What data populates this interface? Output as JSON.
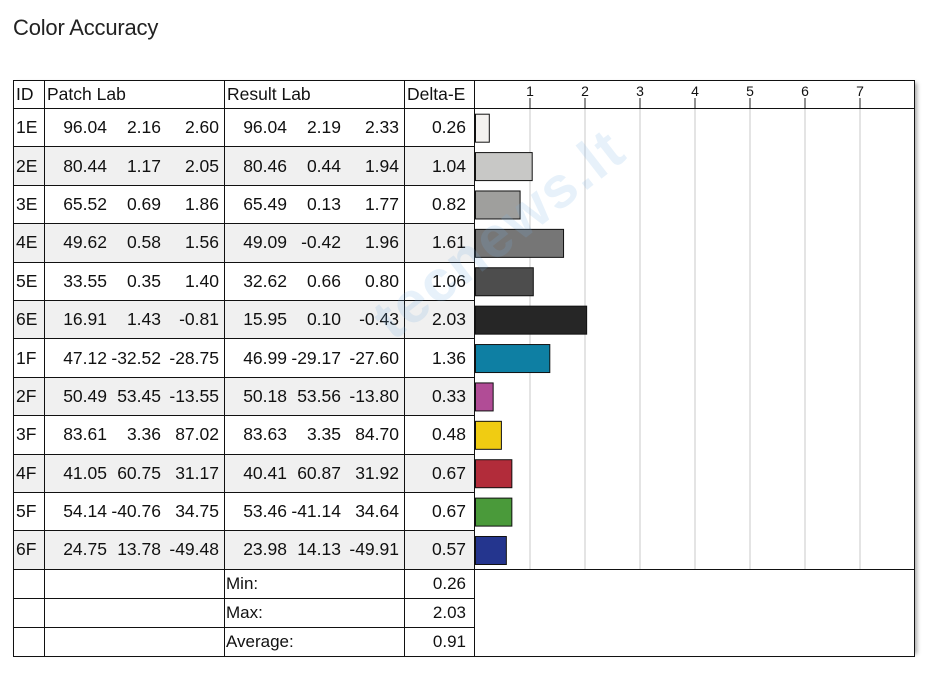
{
  "title": "Color Accuracy",
  "headers": {
    "id": "ID",
    "patch": "Patch Lab",
    "result": "Result Lab",
    "delta": "Delta-E"
  },
  "rows": [
    {
      "id": "1E",
      "patch": [
        "96.04",
        "2.16",
        "2.60"
      ],
      "result": [
        "96.04",
        "2.19",
        "2.33"
      ],
      "delta": "0.26",
      "color": "#f4f2f0"
    },
    {
      "id": "2E",
      "patch": [
        "80.44",
        "1.17",
        "2.05"
      ],
      "result": [
        "80.46",
        "0.44",
        "1.94"
      ],
      "delta": "1.04",
      "color": "#c8c8c6"
    },
    {
      "id": "3E",
      "patch": [
        "65.52",
        "0.69",
        "1.86"
      ],
      "result": [
        "65.49",
        "0.13",
        "1.77"
      ],
      "delta": "0.82",
      "color": "#9f9f9d"
    },
    {
      "id": "4E",
      "patch": [
        "49.62",
        "0.58",
        "1.56"
      ],
      "result": [
        "49.09",
        "-0.42",
        "1.96"
      ],
      "delta": "1.61",
      "color": "#767676"
    },
    {
      "id": "5E",
      "patch": [
        "33.55",
        "0.35",
        "1.40"
      ],
      "result": [
        "32.62",
        "0.66",
        "0.80"
      ],
      "delta": "1.06",
      "color": "#4d4d4d"
    },
    {
      "id": "6E",
      "patch": [
        "16.91",
        "1.43",
        "-0.81"
      ],
      "result": [
        "15.95",
        "0.10",
        "-0.43"
      ],
      "delta": "2.03",
      "color": "#262626"
    },
    {
      "id": "1F",
      "patch": [
        "47.12",
        "-32.52",
        "-28.75"
      ],
      "result": [
        "46.99",
        "-29.17",
        "-27.60"
      ],
      "delta": "1.36",
      "color": "#0e7fa3"
    },
    {
      "id": "2F",
      "patch": [
        "50.49",
        "53.45",
        "-13.55"
      ],
      "result": [
        "50.18",
        "53.56",
        "-13.80"
      ],
      "delta": "0.33",
      "color": "#b14c96"
    },
    {
      "id": "3F",
      "patch": [
        "83.61",
        "3.36",
        "87.02"
      ],
      "result": [
        "83.63",
        "3.35",
        "84.70"
      ],
      "delta": "0.48",
      "color": "#f0cc12"
    },
    {
      "id": "4F",
      "patch": [
        "41.05",
        "60.75",
        "31.17"
      ],
      "result": [
        "40.41",
        "60.87",
        "31.92"
      ],
      "delta": "0.67",
      "color": "#b22c3a"
    },
    {
      "id": "5F",
      "patch": [
        "54.14",
        "-40.76",
        "34.75"
      ],
      "result": [
        "53.46",
        "-41.14",
        "34.64"
      ],
      "delta": "0.67",
      "color": "#4a9a3a"
    },
    {
      "id": "6F",
      "patch": [
        "24.75",
        "13.78",
        "-49.48"
      ],
      "result": [
        "23.98",
        "14.13",
        "-49.91"
      ],
      "delta": "0.57",
      "color": "#24358e"
    }
  ],
  "summary": [
    {
      "label": "Min:",
      "value": "0.26"
    },
    {
      "label": "Max:",
      "value": "2.03"
    },
    {
      "label": "Average:",
      "value": "0.91"
    }
  ],
  "watermark": "tecnews.lt",
  "chart_data": {
    "type": "bar",
    "orientation": "horizontal",
    "title": "Color Accuracy",
    "categories": [
      "1E",
      "2E",
      "3E",
      "4E",
      "5E",
      "6E",
      "1F",
      "2F",
      "3F",
      "4F",
      "5F",
      "6F"
    ],
    "values": [
      0.26,
      1.04,
      0.82,
      1.61,
      1.06,
      2.03,
      1.36,
      0.33,
      0.48,
      0.67,
      0.67,
      0.57
    ],
    "bar_colors": [
      "#f4f2f0",
      "#c8c8c6",
      "#9f9f9d",
      "#767676",
      "#4d4d4d",
      "#262626",
      "#0e7fa3",
      "#b14c96",
      "#f0cc12",
      "#b22c3a",
      "#4a9a3a",
      "#24358e"
    ],
    "xticks": [
      1,
      2,
      3,
      4,
      5,
      6,
      7
    ],
    "xlim": [
      0,
      8
    ],
    "grid": true
  }
}
